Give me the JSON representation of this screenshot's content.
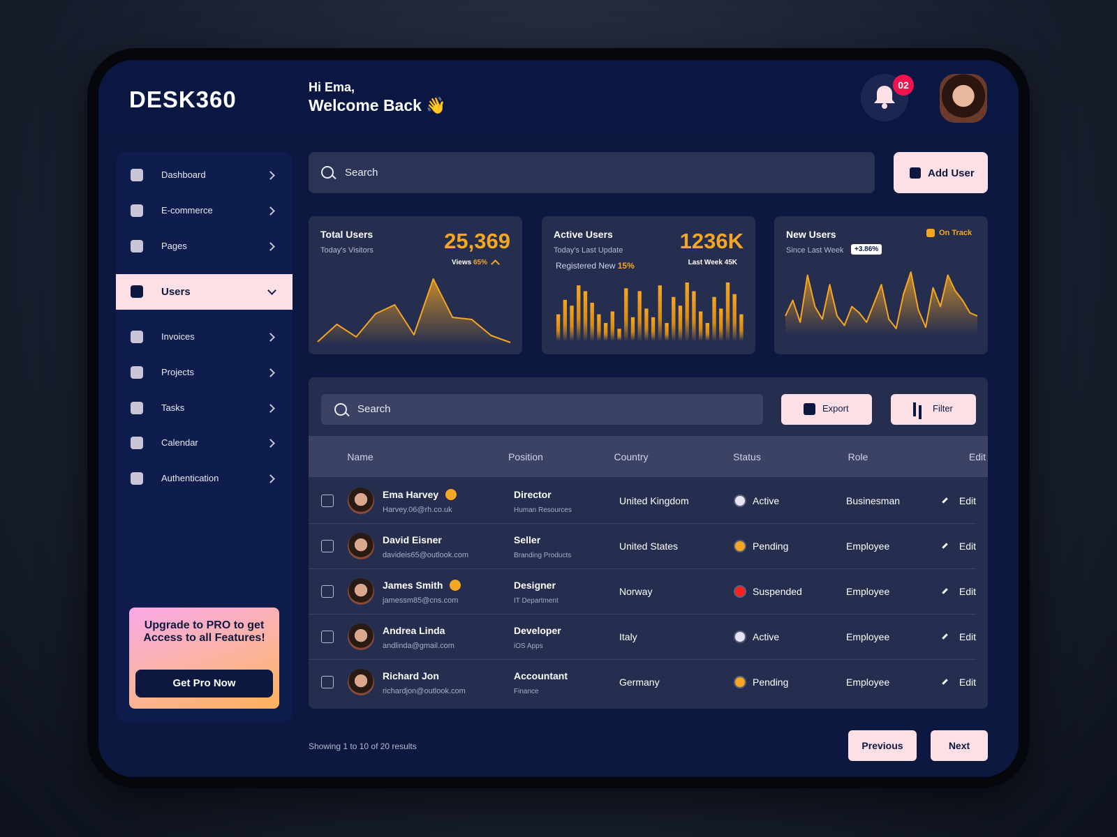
{
  "header": {
    "logo": "DESK360",
    "greeting": "Hi Ema,",
    "welcome": "Welcome Back 👋",
    "notifications": "02"
  },
  "sidebar": {
    "menu": [
      {
        "label": "Dashboard"
      },
      {
        "label": "E-commerce"
      },
      {
        "label": "Pages"
      },
      {
        "label": "Users",
        "active": true
      },
      {
        "label": "Invoices"
      },
      {
        "label": "Projects"
      },
      {
        "label": "Tasks"
      },
      {
        "label": "Calendar"
      },
      {
        "label": "Authentication"
      }
    ],
    "promo": {
      "text": "Upgrade to PRO to get Access to all Features!",
      "button": "Get Pro Now"
    }
  },
  "search": {
    "placeholder": "Search",
    "button": "Add User"
  },
  "cards": [
    {
      "title": "Total Users",
      "subtitle": "Today's Visitors",
      "value": "25,369",
      "views_label": "Views",
      "views_value": "65%",
      "chart": {
        "type": "line",
        "ylim": [
          0,
          100
        ],
        "values": [
          5,
          30,
          12,
          45,
          58,
          15,
          95,
          40,
          37,
          14,
          4
        ]
      }
    },
    {
      "title": "Active Users",
      "subtitle": "Today's Last Update",
      "registered_label": "Registered New",
      "registered_value": "15%",
      "value": "1236K",
      "last_week": "Last Week 45K",
      "chart": {
        "type": "bar",
        "ylim": [
          0,
          100
        ],
        "values": [
          45,
          70,
          60,
          95,
          85,
          65,
          45,
          30,
          50,
          20,
          90,
          40,
          85,
          55,
          40,
          95,
          30,
          75,
          60,
          100,
          85,
          50,
          30,
          75,
          55,
          100,
          80,
          45
        ]
      }
    },
    {
      "title": "New Users",
      "subtitle": "Since Last Week",
      "change": "+3.86%",
      "status": "On Track",
      "chart": {
        "type": "line",
        "ylim": [
          0,
          100
        ],
        "values": [
          30,
          55,
          20,
          95,
          45,
          25,
          80,
          30,
          15,
          45,
          35,
          20,
          50,
          80,
          25,
          10,
          65,
          100,
          40,
          12,
          75,
          45,
          95,
          70,
          55,
          35,
          30
        ]
      }
    }
  ],
  "table": {
    "search": "Search",
    "export": "Export",
    "filter": "Filter",
    "columns": [
      "Name",
      "Position",
      "Country",
      "Status",
      "Role",
      "Edit"
    ],
    "rows": [
      {
        "name": "Ema Harvey",
        "verified": true,
        "email": "Harvey.06@rh.co.uk",
        "position": "Director",
        "department": "Human Resources",
        "country": "United Kingdom",
        "status": "Active",
        "status_color": "#e9e3f3",
        "role": "Businesman",
        "edit": "Edit"
      },
      {
        "name": "David Eisner",
        "verified": false,
        "email": "davideis65@outlook.com",
        "position": "Seller",
        "department": "Branding Products",
        "country": "United States",
        "status": "Pending",
        "status_color": "#f5a623",
        "role": "Employee",
        "edit": "Edit"
      },
      {
        "name": "James Smith",
        "verified": true,
        "email": "jamessm85@cns.com",
        "position": "Designer",
        "department": "IT Department",
        "country": "Norway",
        "status": "Suspended",
        "status_color": "#ff1f1f",
        "role": "Employee",
        "edit": "Edit"
      },
      {
        "name": "Andrea Linda",
        "verified": false,
        "email": "andlinda@gmail.com",
        "position": "Developer",
        "department": "iOS Apps",
        "country": "Italy",
        "status": "Active",
        "status_color": "#e9e3f3",
        "role": "Employee",
        "edit": "Edit"
      },
      {
        "name": "Richard Jon",
        "verified": false,
        "email": "richardjon@outlook.com",
        "position": "Accountant",
        "department": "Finance",
        "country": "Germany",
        "status": "Pending",
        "status_color": "#f5a623",
        "role": "Employee",
        "edit": "Edit"
      }
    ]
  },
  "pagination": {
    "summary": "Showing 1 to 10 of 20 results",
    "previous": "Previous",
    "next": "Next"
  }
}
